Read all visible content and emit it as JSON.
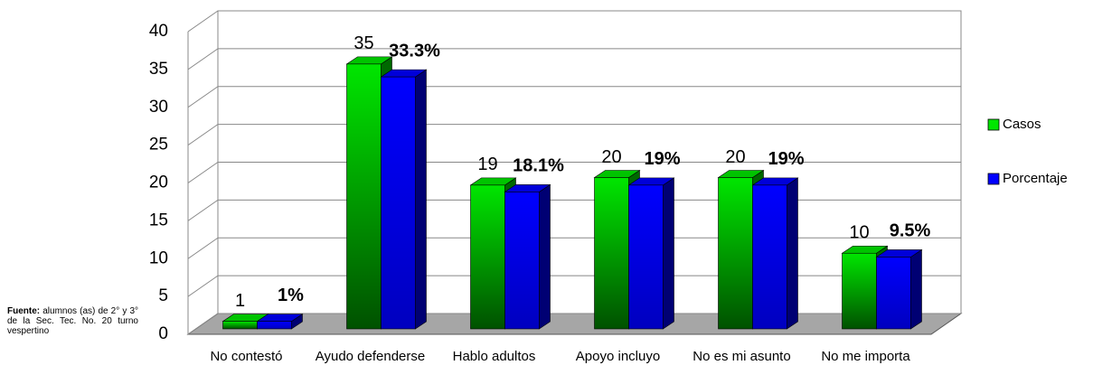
{
  "chart_data": {
    "type": "bar3d",
    "categories": [
      "No contestó",
      "Ayudo defenderse",
      "Hablo adultos",
      "Apoyo incluyo",
      "No es mi asunto",
      "No me importa"
    ],
    "series": [
      {
        "name": "Casos",
        "color": "#00e600",
        "values": [
          1,
          35,
          19,
          20,
          20,
          10
        ]
      },
      {
        "name": "Porcentaje",
        "color": "#0000ff",
        "values": [
          1,
          33.3,
          18.1,
          19,
          19,
          9.5
        ],
        "value_labels": [
          "1%",
          "33.3%",
          "18.1%",
          "19%",
          "19%",
          "9.5%"
        ]
      }
    ],
    "ylim": [
      0,
      40
    ],
    "yticks": [
      0,
      5,
      10,
      15,
      20,
      25,
      30,
      35,
      40
    ],
    "grid": true,
    "legend": "right",
    "source_label": "Fuente:",
    "source_text": "alumnos (as) de 2° y 3° de la Sec. Tec. No. 20 turno vespertino"
  }
}
